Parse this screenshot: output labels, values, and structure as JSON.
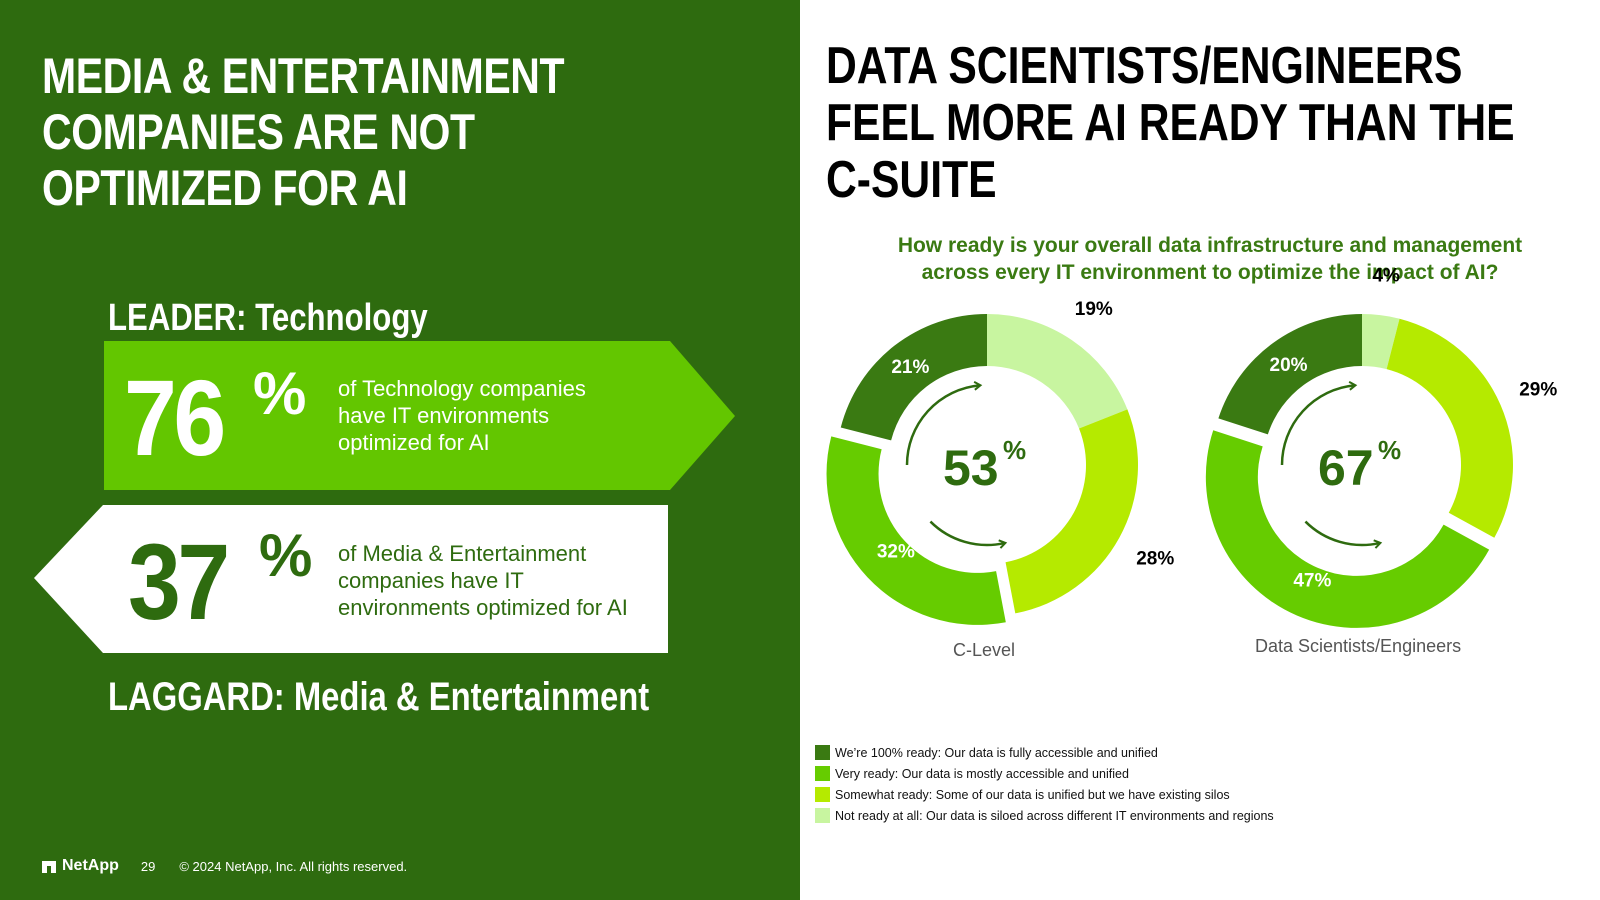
{
  "left": {
    "title_lines": [
      "MEDIA & ENTERTAINMENT",
      "COMPANIES ARE NOT",
      "OPTIMIZED FOR AI"
    ],
    "leader_label": "LEADER: Technology",
    "leader_value": "76",
    "leader_pct": "%",
    "leader_text_lines": [
      "of Technology companies",
      "have IT environments",
      "optimized for AI"
    ],
    "laggard_value": "37",
    "laggard_pct": "%",
    "laggard_text_lines": [
      "of Media & Entertainment",
      "companies have IT",
      "environments optimized for AI"
    ],
    "laggard_label": "LAGGARD: Media & Entertainment",
    "footer_brand": "NetApp",
    "footer_page": "29",
    "footer_copyright": "© 2024 NetApp, Inc. All rights reserved."
  },
  "right": {
    "title_lines": [
      "DATA SCIENTISTS/ENGINEERS",
      "FEEL MORE AI READY THAN THE",
      "C-SUITE"
    ],
    "question_lines": [
      "How ready is your overall data infrastructure and management",
      "across every IT environment to optimize the impact of AI?"
    ]
  },
  "colors": {
    "left_bg": "#2e6b0f",
    "leader_banner": "#63c600",
    "text_green": "#2e6b0f",
    "question_green": "#3a7a12"
  },
  "chart_data": {
    "type": "pie",
    "variant": "donut",
    "categories": [
      "We’re 100% ready: Our data is fully accessible and unified",
      "Very ready: Our data is mostly accessible and unified",
      "Somewhat ready: Some of our data is unified but we have existing silos",
      "Not ready at all: Our data is siloed across different IT environments and regions"
    ],
    "colors": [
      "#3a7a12",
      "#66cc00",
      "#b5ea00",
      "#c8f5a0"
    ],
    "charts": [
      {
        "name": "C-Level",
        "values": [
          21,
          32,
          28,
          19
        ],
        "value_labels": [
          "21%",
          "32%",
          "28%",
          "19%"
        ],
        "center_value": "53",
        "center_pct": "%"
      },
      {
        "name": "Data Scientists/Engineers",
        "values": [
          20,
          47,
          29,
          4
        ],
        "value_labels": [
          "20%",
          "47%",
          "29%",
          "4%"
        ],
        "center_value": "67",
        "center_pct": "%"
      }
    ],
    "legend_position": "bottom-left"
  }
}
